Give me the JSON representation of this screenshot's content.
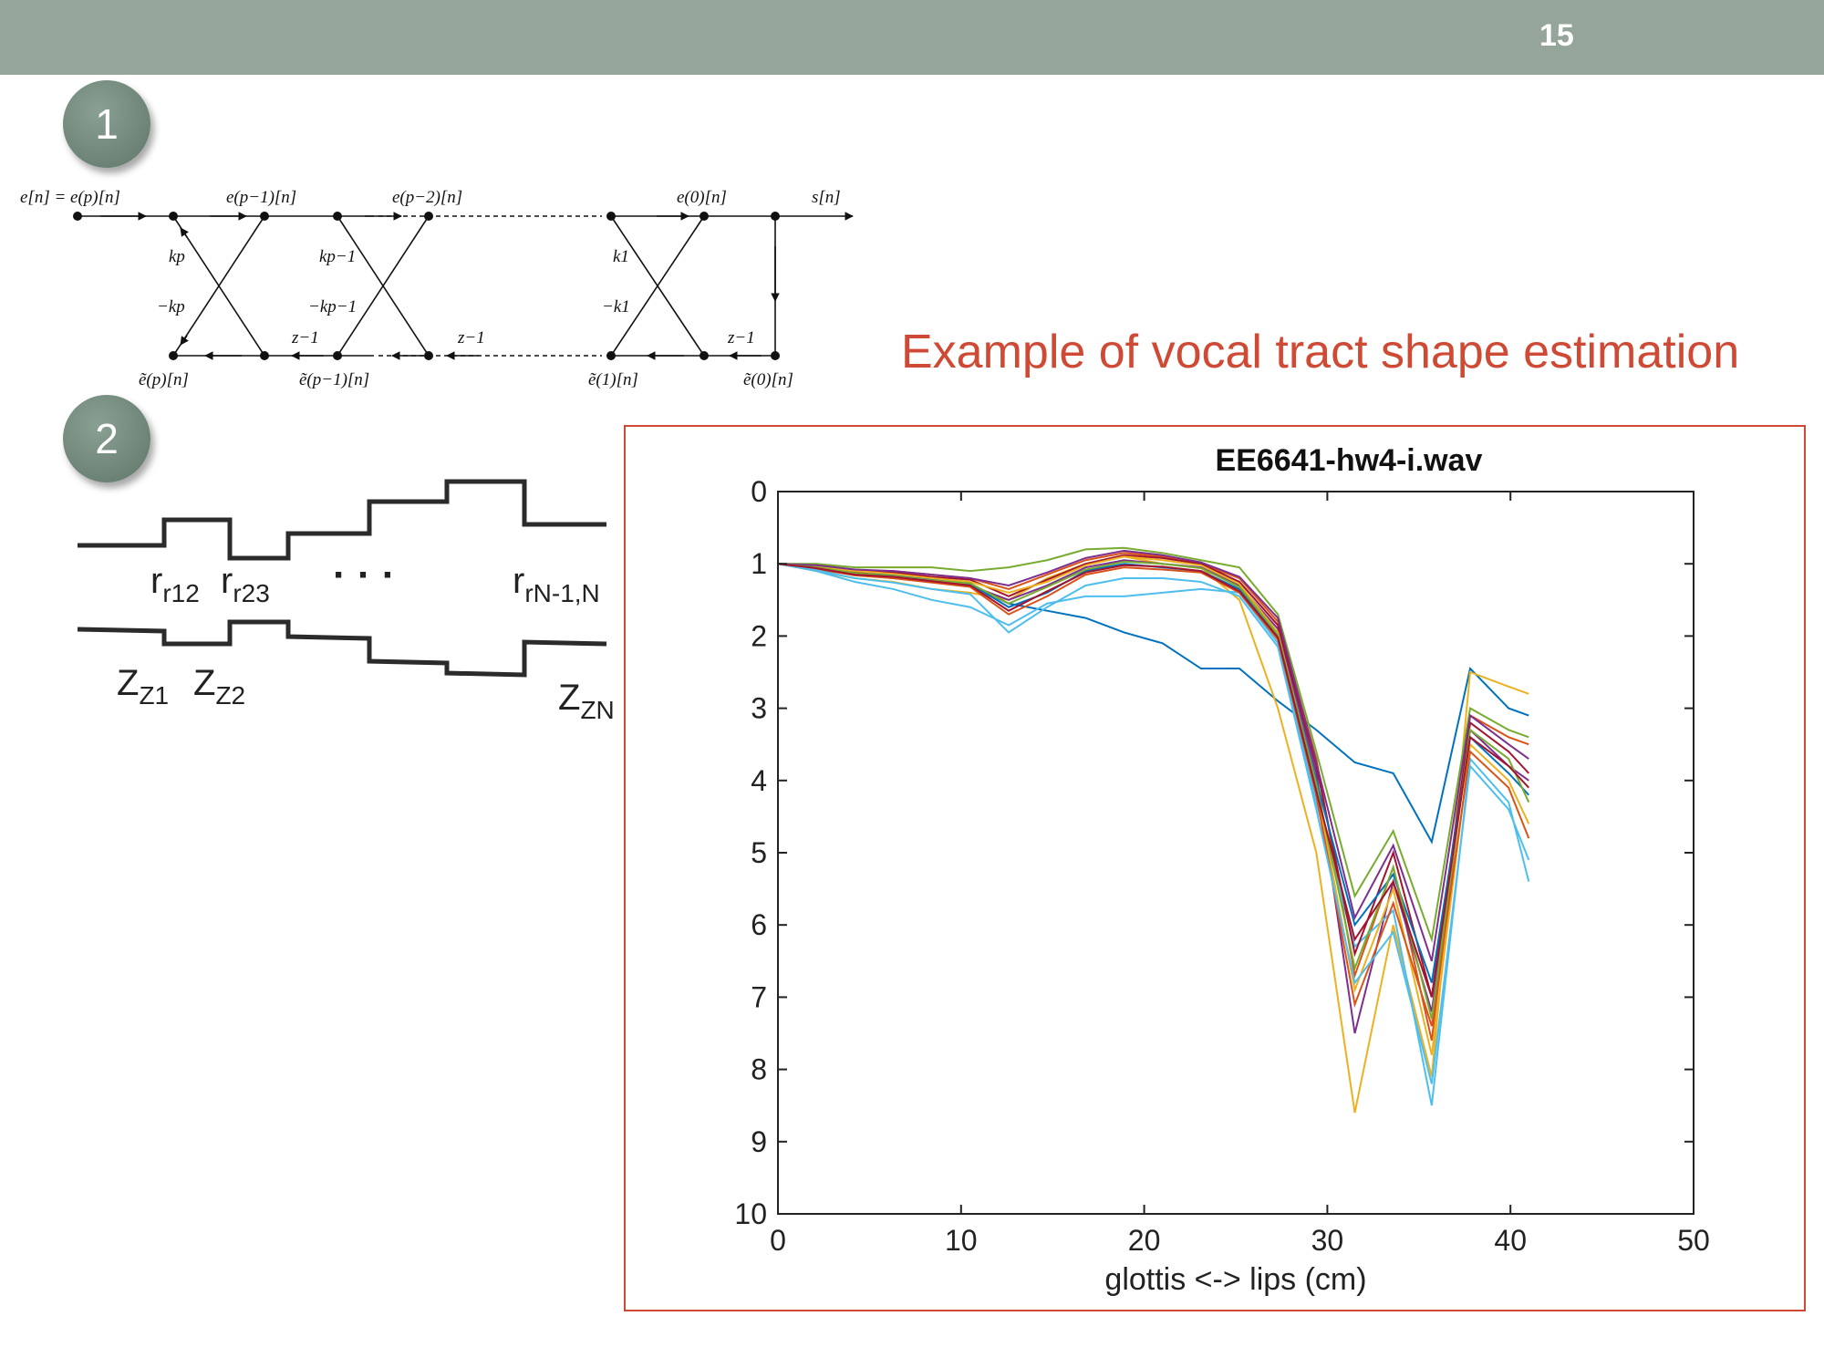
{
  "slide": {
    "page_number": "15",
    "badges": [
      "1",
      "2"
    ],
    "section_title": "Example of vocal tract shape estimation"
  },
  "lattice_diagram": {
    "top_labels": [
      "e[n] = e(p)[n]",
      "e(p−1)[n]",
      "e(p−2)[n]",
      "e(0)[n]",
      "s[n]"
    ],
    "bottom_labels": [
      "ẽ(p)[n]",
      "ẽ(p−1)[n]",
      "ẽ(1)[n]",
      "ẽ(0)[n]"
    ],
    "coefficients": [
      "kp",
      "−kp",
      "kp−1",
      "−kp−1",
      "k1",
      "−k1"
    ],
    "delays": [
      "z−1",
      "z−1",
      "z−1"
    ]
  },
  "tube_diagram": {
    "reflection_labels": [
      "r12",
      "r23",
      "· · ·",
      "rN-1,N"
    ],
    "impedance_labels": [
      "Z1",
      "Z2",
      "ZN"
    ]
  },
  "chart_data": {
    "type": "line",
    "title": "EE6641-hw4-i.wav",
    "xlabel": "glottis <-> lips (cm)",
    "ylabel": "",
    "xlim": [
      0,
      50
    ],
    "ylim": [
      0,
      10
    ],
    "y_reversed": true,
    "x_ticks": [
      "0",
      "10",
      "20",
      "30",
      "40",
      "50"
    ],
    "y_ticks": [
      "0",
      "1",
      "2",
      "3",
      "4",
      "5",
      "6",
      "7",
      "8",
      "9",
      "10"
    ],
    "grid": false,
    "x": [
      0,
      2.1,
      4.2,
      6.3,
      8.4,
      10.5,
      12.6,
      14.7,
      16.8,
      18.9,
      21.0,
      23.1,
      25.2,
      27.3,
      29.4,
      31.5,
      33.6,
      35.7,
      37.8,
      39.9,
      41.0
    ],
    "series": [
      {
        "color": "#0072bd",
        "values": [
          1.0,
          1.05,
          1.1,
          1.15,
          1.2,
          1.3,
          1.55,
          1.65,
          1.75,
          1.95,
          2.1,
          2.45,
          2.45,
          2.9,
          3.3,
          3.75,
          3.9,
          4.85,
          2.45,
          3.0,
          3.1
        ]
      },
      {
        "color": "#edb120",
        "values": [
          1.0,
          1.1,
          1.2,
          1.25,
          1.35,
          1.4,
          1.5,
          1.2,
          1.0,
          0.9,
          1.0,
          1.05,
          1.5,
          3.0,
          5.0,
          8.6,
          6.0,
          8.1,
          2.5,
          2.7,
          2.8
        ]
      },
      {
        "color": "#d95319",
        "values": [
          1.0,
          1.05,
          1.1,
          1.1,
          1.15,
          1.2,
          1.35,
          1.15,
          0.95,
          0.85,
          0.9,
          1.0,
          1.2,
          1.8,
          3.7,
          6.7,
          5.2,
          7.6,
          3.1,
          3.4,
          3.5
        ]
      },
      {
        "color": "#7e2f8e",
        "values": [
          1.0,
          1.08,
          1.15,
          1.2,
          1.25,
          1.3,
          1.5,
          1.3,
          1.05,
          0.95,
          1.0,
          1.05,
          1.3,
          1.9,
          3.9,
          7.5,
          5.4,
          7.2,
          3.3,
          3.8,
          4.0
        ]
      },
      {
        "color": "#77ac30",
        "values": [
          1.0,
          1.0,
          1.05,
          1.05,
          1.05,
          1.1,
          1.05,
          0.95,
          0.8,
          0.78,
          0.85,
          0.95,
          1.05,
          1.7,
          3.6,
          5.6,
          4.7,
          6.2,
          3.0,
          3.3,
          3.4
        ]
      },
      {
        "color": "#4dbeee",
        "values": [
          1.0,
          1.1,
          1.25,
          1.35,
          1.5,
          1.6,
          1.85,
          1.55,
          1.45,
          1.45,
          1.4,
          1.35,
          1.4,
          2.1,
          4.3,
          6.3,
          5.8,
          8.5,
          3.7,
          4.3,
          5.4
        ]
      },
      {
        "color": "#a2142f",
        "values": [
          1.0,
          1.03,
          1.12,
          1.12,
          1.18,
          1.22,
          1.45,
          1.22,
          1.0,
          0.88,
          0.92,
          1.0,
          1.25,
          1.85,
          3.8,
          6.4,
          5.0,
          7.0,
          3.2,
          3.6,
          3.9
        ]
      },
      {
        "color": "#0072bd",
        "values": [
          1.0,
          1.06,
          1.14,
          1.16,
          1.22,
          1.28,
          1.6,
          1.4,
          1.1,
          1.0,
          1.05,
          1.1,
          1.35,
          2.0,
          4.0,
          6.0,
          5.3,
          6.8,
          3.4,
          3.9,
          4.2
        ]
      },
      {
        "color": "#edb120",
        "values": [
          1.0,
          1.04,
          1.1,
          1.14,
          1.2,
          1.25,
          1.4,
          1.25,
          1.02,
          0.9,
          0.95,
          1.02,
          1.28,
          1.95,
          4.1,
          6.9,
          5.5,
          7.8,
          3.5,
          4.0,
          4.6
        ]
      },
      {
        "color": "#d95319",
        "values": [
          1.0,
          1.07,
          1.16,
          1.2,
          1.26,
          1.32,
          1.7,
          1.45,
          1.15,
          1.05,
          1.08,
          1.12,
          1.4,
          2.05,
          4.2,
          7.1,
          5.7,
          7.4,
          3.6,
          4.1,
          4.8
        ]
      },
      {
        "color": "#7e2f8e",
        "values": [
          1.0,
          1.02,
          1.08,
          1.1,
          1.15,
          1.2,
          1.3,
          1.12,
          0.92,
          0.82,
          0.88,
          0.98,
          1.18,
          1.75,
          3.75,
          5.9,
          4.9,
          6.5,
          3.1,
          3.5,
          3.7
        ]
      },
      {
        "color": "#77ac30",
        "values": [
          1.0,
          1.05,
          1.13,
          1.17,
          1.23,
          1.27,
          1.55,
          1.32,
          1.08,
          0.97,
          1.0,
          1.06,
          1.32,
          1.98,
          4.05,
          6.6,
          5.2,
          7.3,
          3.3,
          3.7,
          4.3
        ]
      },
      {
        "color": "#4dbeee",
        "values": [
          1.0,
          1.09,
          1.2,
          1.26,
          1.35,
          1.42,
          1.95,
          1.6,
          1.3,
          1.2,
          1.2,
          1.25,
          1.45,
          2.15,
          4.4,
          6.8,
          6.1,
          8.2,
          3.8,
          4.4,
          5.1
        ]
      },
      {
        "color": "#a2142f",
        "values": [
          1.0,
          1.06,
          1.15,
          1.18,
          1.24,
          1.3,
          1.65,
          1.38,
          1.12,
          1.02,
          1.04,
          1.1,
          1.38,
          2.02,
          4.15,
          6.2,
          5.4,
          7.0,
          3.4,
          3.8,
          4.1
        ]
      }
    ]
  }
}
